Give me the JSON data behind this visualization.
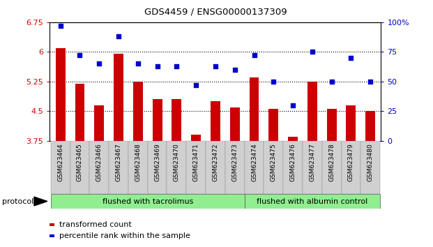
{
  "title": "GDS4459 / ENSG00000137309",
  "categories": [
    "GSM623464",
    "GSM623465",
    "GSM623466",
    "GSM623467",
    "GSM623468",
    "GSM623469",
    "GSM623470",
    "GSM623471",
    "GSM623472",
    "GSM623473",
    "GSM623474",
    "GSM623475",
    "GSM623476",
    "GSM623477",
    "GSM623478",
    "GSM623479",
    "GSM623480"
  ],
  "bar_values": [
    6.1,
    5.2,
    4.65,
    5.95,
    5.25,
    4.8,
    4.8,
    3.9,
    4.75,
    4.6,
    5.35,
    4.55,
    3.85,
    5.25,
    4.55,
    4.65,
    4.5
  ],
  "dot_values": [
    97,
    72,
    65,
    88,
    65,
    63,
    63,
    47,
    63,
    60,
    72,
    50,
    30,
    75,
    50,
    70,
    50
  ],
  "bar_color": "#cc0000",
  "dot_color": "#0000cc",
  "ylim_left": [
    3.75,
    6.75
  ],
  "ylim_right": [
    0,
    100
  ],
  "yticks_left": [
    3.75,
    4.5,
    5.25,
    6.0,
    6.75
  ],
  "yticks_right": [
    0,
    25,
    50,
    75,
    100
  ],
  "ytick_labels_left": [
    "3.75",
    "4.5",
    "5.25",
    "6",
    "6.75"
  ],
  "ytick_labels_right": [
    "0",
    "25",
    "50",
    "75",
    "100%"
  ],
  "hlines": [
    6.0,
    5.25,
    4.5
  ],
  "group1_label": "flushed with tacrolimus",
  "group2_label": "flushed with albumin control",
  "group1_count": 10,
  "group2_count": 7,
  "protocol_label": "protocol",
  "legend_bar": "transformed count",
  "legend_dot": "percentile rank within the sample",
  "plot_bg": "#ffffff",
  "group_bg": "#90ee90",
  "xtick_bg": "#d0d0d0",
  "spine_color": "#000000"
}
